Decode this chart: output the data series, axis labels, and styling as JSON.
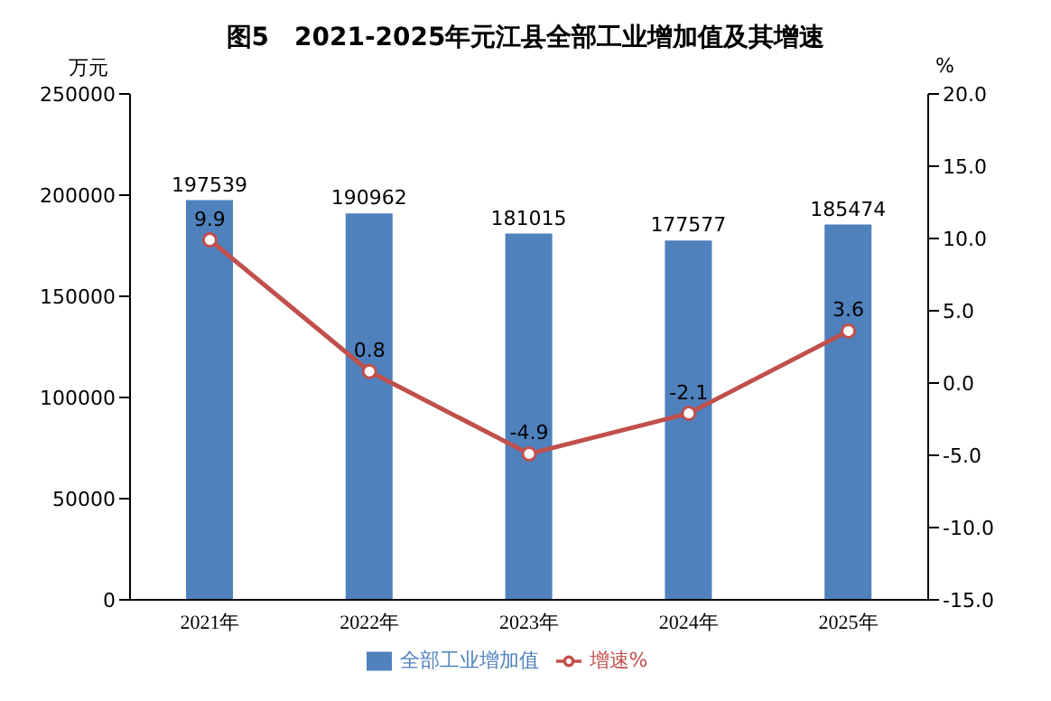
{
  "chart_data": {
    "type": "bar",
    "title": "图5　2021-2025年元江县全部工业增加值及其增速",
    "ylabel": "万元",
    "y2label": "%",
    "categories": [
      "2021年",
      "2022年",
      "2023年",
      "2024年",
      "2025年"
    ],
    "series": [
      {
        "name": "全部工业增加值",
        "color": "#4f81bd",
        "values": [
          197539,
          190962,
          181015,
          177577,
          185474
        ]
      },
      {
        "name": "增速%",
        "type": "line",
        "axis": "y2",
        "color": "#c0504d",
        "marker": "circle",
        "values": [
          9.9,
          0.8,
          -4.9,
          -2.1,
          3.6
        ]
      }
    ],
    "ylim": [
      0,
      250000
    ],
    "yticks": [
      0,
      50000,
      100000,
      150000,
      200000,
      250000
    ],
    "y2lim": [
      -15,
      20
    ],
    "y2ticks": [
      {
        "value": -15,
        "label": "-15.0"
      },
      {
        "value": -10,
        "label": "-10.0"
      },
      {
        "value": -5,
        "label": "-5.0"
      },
      {
        "value": 0,
        "label": "0.0"
      },
      {
        "value": 5,
        "label": "5.0"
      },
      {
        "value": 10,
        "label": "10.0"
      },
      {
        "value": 15,
        "label": "15.0"
      },
      {
        "value": 20,
        "label": "20.0"
      }
    ],
    "data_labels": true,
    "legend": "bottom",
    "grid": false
  }
}
